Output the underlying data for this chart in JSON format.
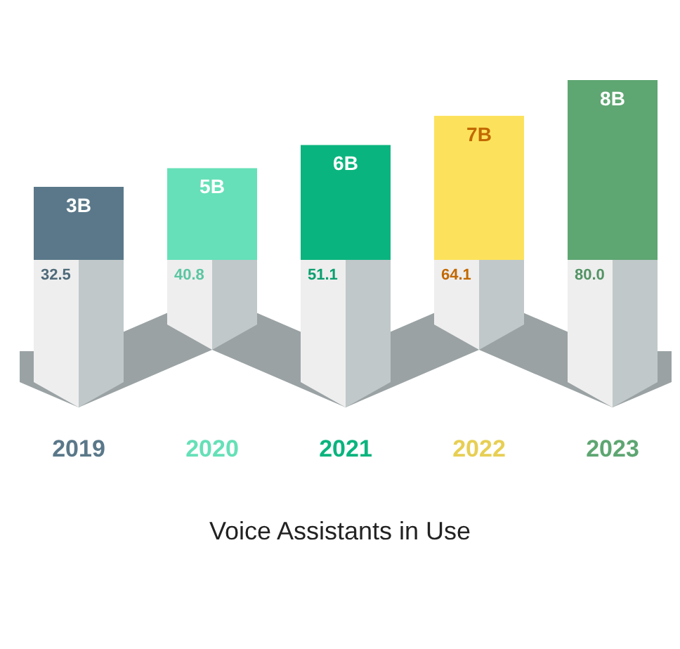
{
  "chart_data": {
    "type": "bar",
    "title": "Voice Assistants in Use",
    "categories": [
      "2019",
      "2020",
      "2021",
      "2022",
      "2023"
    ],
    "values": [
      32.5,
      40.8,
      51.1,
      64.1,
      80.0
    ],
    "colors": [
      "#5a7889",
      "#66e0b8",
      "#0ab47e",
      "#fce25c",
      "#5ea672"
    ],
    "value_labels": [
      "32.5",
      "40.8",
      "51.1",
      "64.1",
      "80.0"
    ],
    "annotations": [
      {
        "text": "3B",
        "x": "2019",
        "y": 32.5
      },
      {
        "text": "5B",
        "x": "2020",
        "y": 40.8
      },
      {
        "text": "6B",
        "x": "2021",
        "y": 51.1
      },
      {
        "text": "7B",
        "x": "2022",
        "y": 64.1
      },
      {
        "text": "8B",
        "x": "2023",
        "y": 80.0
      }
    ]
  }
}
